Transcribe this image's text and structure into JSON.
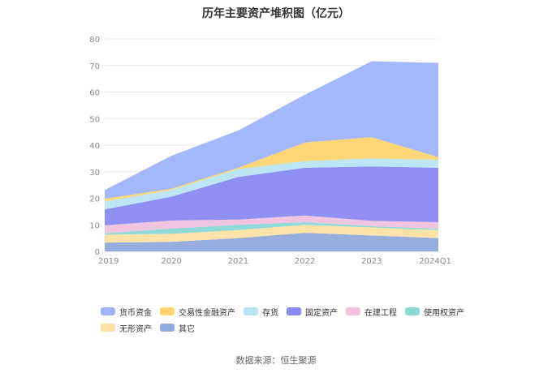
{
  "title": "历年主要资产堆积图（亿元）",
  "source": "数据来源：恒生聚源",
  "chart_data": {
    "type": "area",
    "stacked": true,
    "categories": [
      "2019",
      "2020",
      "2021",
      "2022",
      "2023",
      "2024Q1"
    ],
    "ylim": [
      0,
      80
    ],
    "yticks": [
      0,
      10,
      20,
      30,
      40,
      50,
      60,
      70,
      80
    ],
    "grid": true,
    "legend_position": "bottom",
    "series": [
      {
        "name": "其它",
        "color": "#8faadc",
        "values": [
          3.3,
          3.6,
          5.0,
          7.0,
          6.0,
          5.0
        ]
      },
      {
        "name": "无形资产",
        "color": "#ffe0a3",
        "values": [
          3.0,
          3.0,
          3.0,
          3.0,
          3.0,
          3.0
        ]
      },
      {
        "name": "使用权资产",
        "color": "#8bd8d8",
        "values": [
          0.5,
          2.0,
          2.0,
          1.0,
          0.5,
          0.5
        ]
      },
      {
        "name": "在建工程",
        "color": "#f0c2de",
        "values": [
          3.0,
          3.0,
          2.0,
          2.5,
          2.0,
          2.5
        ]
      },
      {
        "name": "固定资产",
        "color": "#8a8af2",
        "values": [
          6.0,
          9.0,
          16.0,
          18.0,
          20.5,
          20.5
        ]
      },
      {
        "name": "存货",
        "color": "#b8e4f5",
        "values": [
          3.0,
          2.5,
          3.0,
          2.5,
          3.0,
          3.0
        ]
      },
      {
        "name": "交易性金融资产",
        "color": "#ffd46e",
        "values": [
          1.0,
          0.5,
          0.5,
          7.0,
          8.0,
          1.0
        ]
      },
      {
        "name": "货币资金",
        "color": "#9fb5fb",
        "values": [
          3.3,
          12.4,
          14.0,
          18.0,
          28.6,
          35.5
        ]
      }
    ]
  },
  "legend_order": [
    "货币资金",
    "交易性金融资产",
    "存货",
    "固定资产",
    "在建工程",
    "使用权资产",
    "无形资产",
    "其它"
  ]
}
